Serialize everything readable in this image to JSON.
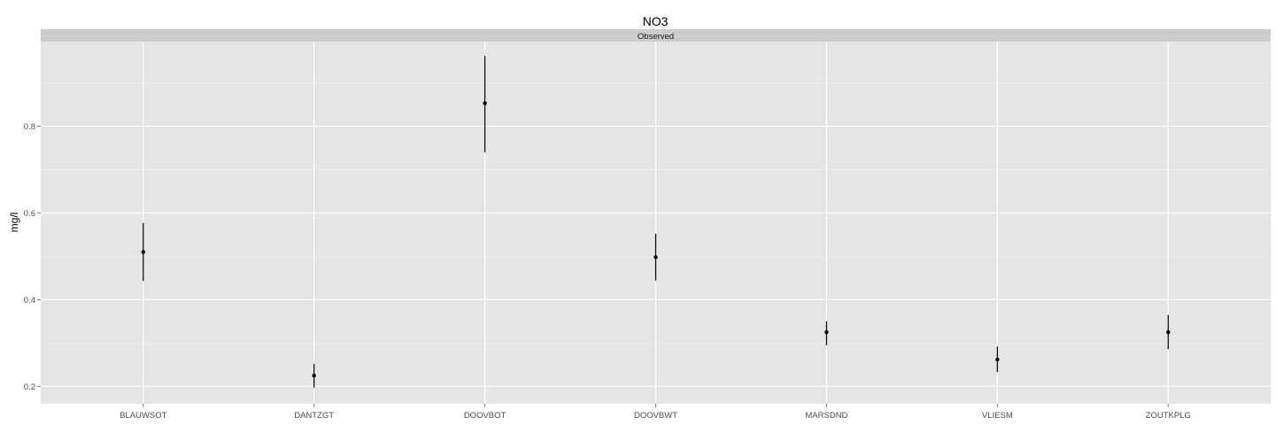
{
  "chart_data": {
    "type": "scatter",
    "title": "NO3",
    "facet_label": "Observed",
    "xlabel": "",
    "ylabel": "mg/l",
    "categories": [
      "BLAUWSOT",
      "DANTZGT",
      "DOOVBOT",
      "DOOVBWT",
      "MARSDND",
      "VLIESM",
      "ZOUTKPLG"
    ],
    "values": [
      0.51,
      0.225,
      0.853,
      0.498,
      0.325,
      0.262,
      0.325
    ],
    "lower": [
      0.443,
      0.197,
      0.74,
      0.444,
      0.295,
      0.233,
      0.286
    ],
    "upper": [
      0.577,
      0.252,
      0.962,
      0.552,
      0.35,
      0.292,
      0.365
    ],
    "ylim": [
      0.16,
      0.995
    ],
    "yticks": [
      0.2,
      0.4,
      0.6,
      0.8
    ],
    "ytick_labels": [
      "0.2",
      "0.4",
      "0.6",
      "0.8"
    ],
    "grid": true,
    "legend": "none",
    "colors": {
      "panel": "#e5e5e5",
      "strip": "#cccccc",
      "grid_major": "#ffffff",
      "grid_minor": "#f2f2f2",
      "points": "#000000"
    }
  }
}
